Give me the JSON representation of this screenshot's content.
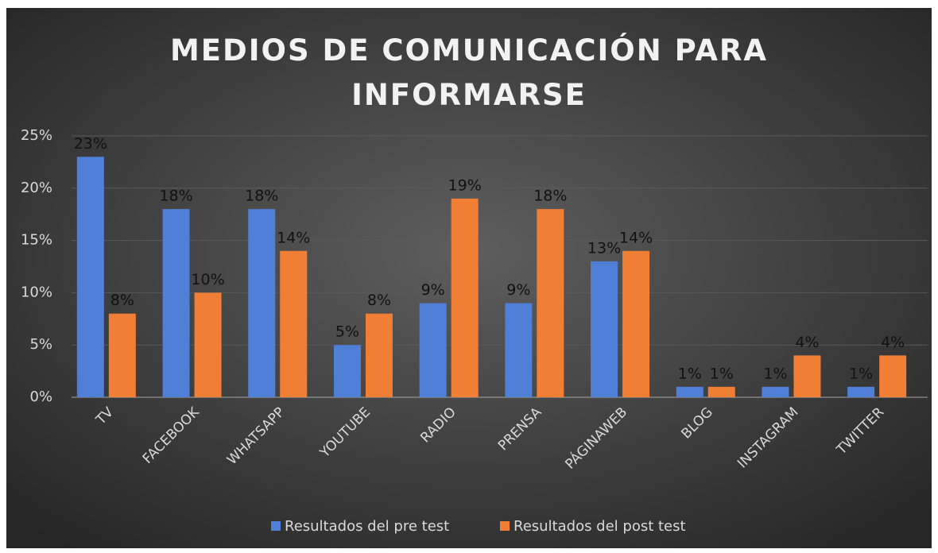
{
  "chart_data": {
    "type": "bar",
    "title": "MEDIOS DE COMUNICACIÓN PARA INFORMARSE",
    "categories": [
      "TV",
      "FACEBOOK",
      "WHATSAPP",
      "YOUTUBE",
      "RADIO",
      "PRENSA",
      "PÁGINAWEB",
      "BLOG",
      "INSTAGRAM",
      "TWITTER"
    ],
    "series": [
      {
        "name": "Resultados del pre test",
        "color": "#4f7fd6",
        "values": [
          23,
          18,
          18,
          5,
          9,
          9,
          13,
          1,
          1,
          1
        ],
        "value_labels": [
          "23%",
          "18%",
          "18%",
          "5%",
          "9%",
          "9%",
          "13%",
          "1%",
          "1%",
          "1%"
        ]
      },
      {
        "name": "Resultados del post test",
        "color": "#f07f35",
        "values": [
          8,
          10,
          14,
          8,
          19,
          18,
          14,
          1,
          4,
          4
        ],
        "value_labels": [
          "8%",
          "10%",
          "14%",
          "8%",
          "19%",
          "18%",
          "14%",
          "1%",
          "4%",
          "4%"
        ]
      }
    ],
    "ylim": [
      0,
      25
    ],
    "yticks": [
      {
        "value": 0,
        "label": "0%"
      },
      {
        "value": 5,
        "label": "5%"
      },
      {
        "value": 10,
        "label": "10%"
      },
      {
        "value": 15,
        "label": "15%"
      },
      {
        "value": 20,
        "label": "20%"
      },
      {
        "value": 25,
        "label": "25%"
      }
    ],
    "grid": true,
    "legend": "bottom"
  }
}
